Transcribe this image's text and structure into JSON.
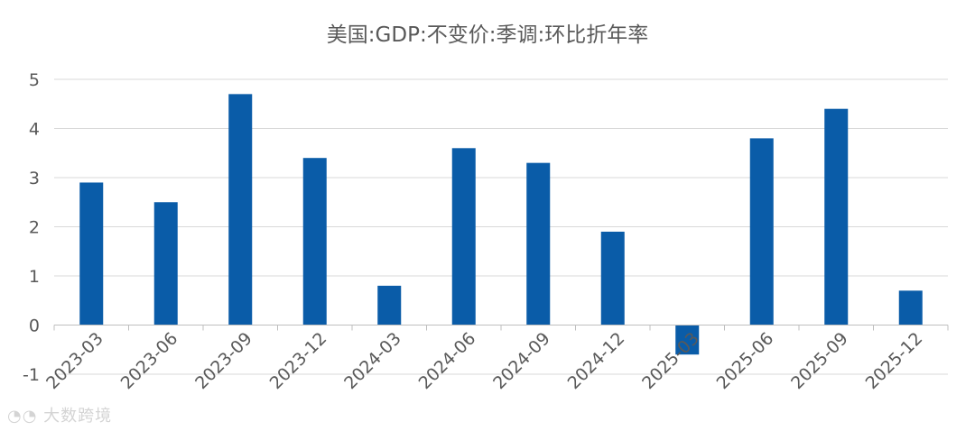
{
  "chart_data": {
    "type": "bar",
    "title": "美国:GDP:不变价:季调:环比折年率",
    "categories": [
      "2023-03",
      "2023-06",
      "2023-09",
      "2023-12",
      "2024-03",
      "2024-06",
      "2024-09",
      "2024-12",
      "2025-03",
      "2025-06",
      "2025-09",
      "2025-12"
    ],
    "values": [
      2.9,
      2.5,
      4.7,
      3.4,
      0.8,
      3.6,
      3.3,
      1.9,
      -0.6,
      3.8,
      4.4,
      0.7
    ],
    "ylim": [
      -1,
      5
    ],
    "yticks": [
      5,
      4,
      3,
      2,
      1,
      0,
      -1
    ],
    "grid": true,
    "colors": {
      "bar": "#0a5ca8",
      "grid": "#d9d9d9",
      "axis": "#bfbfbf"
    }
  },
  "watermark": "大数跨境"
}
